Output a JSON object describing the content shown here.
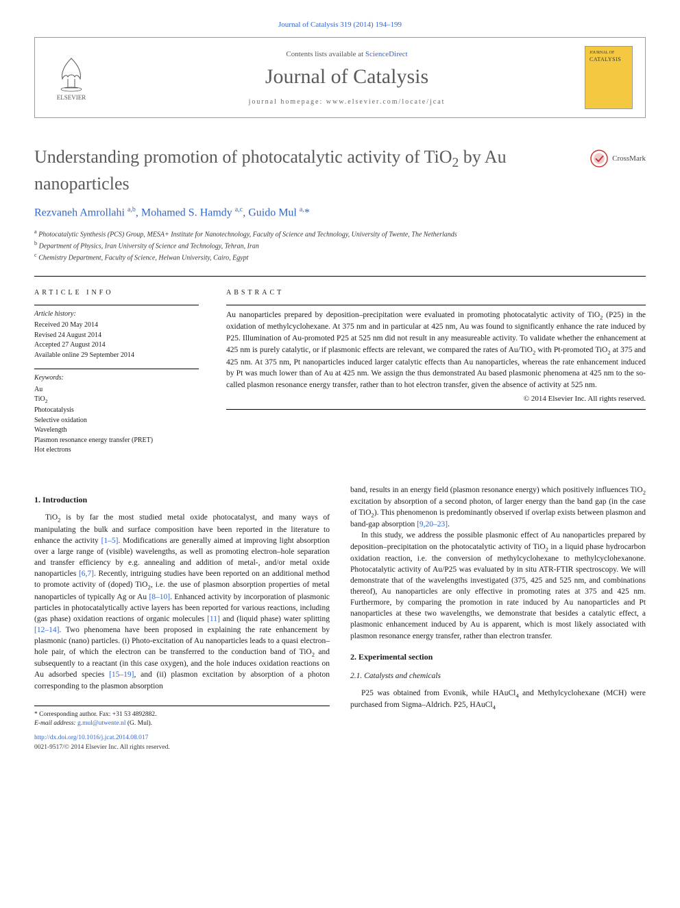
{
  "citation": "Journal of Catalysis 319 (2014) 194–199",
  "header": {
    "publisher": "ELSEVIER",
    "contents_prefix": "Contents lists available at ",
    "contents_link": "ScienceDirect",
    "journal": "Journal of Catalysis",
    "homepage_label": "journal homepage: ",
    "homepage_url": "www.elsevier.com/locate/jcat",
    "cover_label": "JOURNAL OF",
    "cover_title": "CATALYSIS"
  },
  "title": "Understanding promotion of photocatalytic activity of TiO₂ by Au nanoparticles",
  "crossmark": "CrossMark",
  "authors_html": "Rezvaneh Amrollahi <sup>a,b</sup>, Mohamed S. Hamdy <sup>a,c</sup>, Guido Mul <sup>a,</sup>*",
  "affiliations": [
    "a Photocatalytic Synthesis (PCS) Group, MESA+ Institute for Nanotechnology, Faculty of Science and Technology, University of Twente, The Netherlands",
    "b Department of Physics, Iran University of Science and Technology, Tehran, Iran",
    "c Chemistry Department, Faculty of Science, Helwan University, Cairo, Egypt"
  ],
  "info": {
    "heading": "ARTICLE INFO",
    "history_label": "Article history:",
    "history": [
      "Received 20 May 2014",
      "Revised 24 August 2014",
      "Accepted 27 August 2014",
      "Available online 29 September 2014"
    ],
    "keywords_label": "Keywords:",
    "keywords": [
      "Au",
      "TiO₂",
      "Photocatalysis",
      "Selective oxidation",
      "Wavelength",
      "Plasmon resonance energy transfer (PRET)",
      "Hot electrons"
    ]
  },
  "abstract": {
    "heading": "ABSTRACT",
    "body": "Au nanoparticles prepared by deposition–precipitation were evaluated in promoting photocatalytic activity of TiO₂ (P25) in the oxidation of methylcyclohexane. At 375 nm and in particular at 425 nm, Au was found to significantly enhance the rate induced by P25. Illumination of Au-promoted P25 at 525 nm did not result in any measureable activity. To validate whether the enhancement at 425 nm is purely catalytic, or if plasmonic effects are relevant, we compared the rates of Au/TiO₂ with Pt-promoted TiO₂ at 375 and 425 nm. At 375 nm, Pt nanoparticles induced larger catalytic effects than Au nanoparticles, whereas the rate enhancement induced by Pt was much lower than of Au at 425 nm. We assign the thus demonstrated Au based plasmonic phenomena at 425 nm to the so-called plasmon resonance energy transfer, rather than to hot electron transfer, given the absence of activity at 525 nm.",
    "copyright": "© 2014 Elsevier Inc. All rights reserved."
  },
  "sections": {
    "intro_head": "1. Introduction",
    "intro_p1": "TiO₂ is by far the most studied metal oxide photocatalyst, and many ways of manipulating the bulk and surface composition have been reported in the literature to enhance the activity [1–5]. Modifications are generally aimed at improving light absorption over a large range of (visible) wavelengths, as well as promoting electron–hole separation and transfer efficiency by e.g. annealing and addition of metal-, and/or metal oxide nanoparticles [6,7]. Recently, intriguing studies have been reported on an additional method to promote activity of (doped) TiO₂, i.e. the use of plasmon absorption properties of metal nanoparticles of typically Ag or Au [8–10]. Enhanced activity by incorporation of plasmonic particles in photocatalytically active layers has been reported for various reactions, including (gas phase) oxidation reactions of organic molecules [11] and (liquid phase) water splitting [12–14]. Two phenomena have been proposed in explaining the rate enhancement by plasmonic (nano) particles. (i) Photo-excitation of Au nanoparticles leads to a quasi electron–hole pair, of which the electron can be transferred to the conduction band of TiO₂ and subsequently to a reactant (in this case oxygen), and the hole induces oxidation reactions on Au adsorbed species [15–19], and (ii) plasmon excitation by absorption of a photon corresponding to the plasmon absorption",
    "intro_p2": "band, results in an energy field (plasmon resonance energy) which positively influences TiO₂ excitation by absorption of a second photon, of larger energy than the band gap (in the case of TiO₂). This phenomenon is predominantly observed if overlap exists between plasmon and band-gap absorption [9,20–23].",
    "intro_p3": "In this study, we address the possible plasmonic effect of Au nanoparticles prepared by deposition–precipitation on the photocatalytic activity of TiO₂ in a liquid phase hydrocarbon oxidation reaction, i.e. the conversion of methylcyclohexane to methylcyclohexanone. Photocatalytic activity of Au/P25 was evaluated by in situ ATR-FTIR spectroscopy. We will demonstrate that of the wavelengths investigated (375, 425 and 525 nm, and combinations thereof), Au nanoparticles are only effective in promoting rates at 375 and 425 nm. Furthermore, by comparing the promotion in rate induced by Au nanoparticles and Pt nanoparticles at these two wavelengths, we demonstrate that besides a catalytic effect, a plasmonic enhancement induced by Au is apparent, which is most likely associated with plasmon resonance energy transfer, rather than electron transfer.",
    "exp_head": "2. Experimental section",
    "exp_sub": "2.1. Catalysts and chemicals",
    "exp_p1": "P25 was obtained from Evonik, while HAuCl₄ and Methylcyclohexane (MCH) were purchased from Sigma–Aldrich. P25, HAuCl₄"
  },
  "footnote": {
    "corr": "* Corresponding author. Fax: +31 53 4892882.",
    "email_label": "E-mail address: ",
    "email": "g.mul@utwente.nl",
    "email_person": " (G. Mul).",
    "doi": "http://dx.doi.org/10.1016/j.jcat.2014.08.017",
    "issn": "0021-9517/© 2014 Elsevier Inc. All rights reserved."
  },
  "colors": {
    "link": "#3366cc",
    "title_gray": "#5a5a5a",
    "cover_bg": "#f5c842"
  }
}
